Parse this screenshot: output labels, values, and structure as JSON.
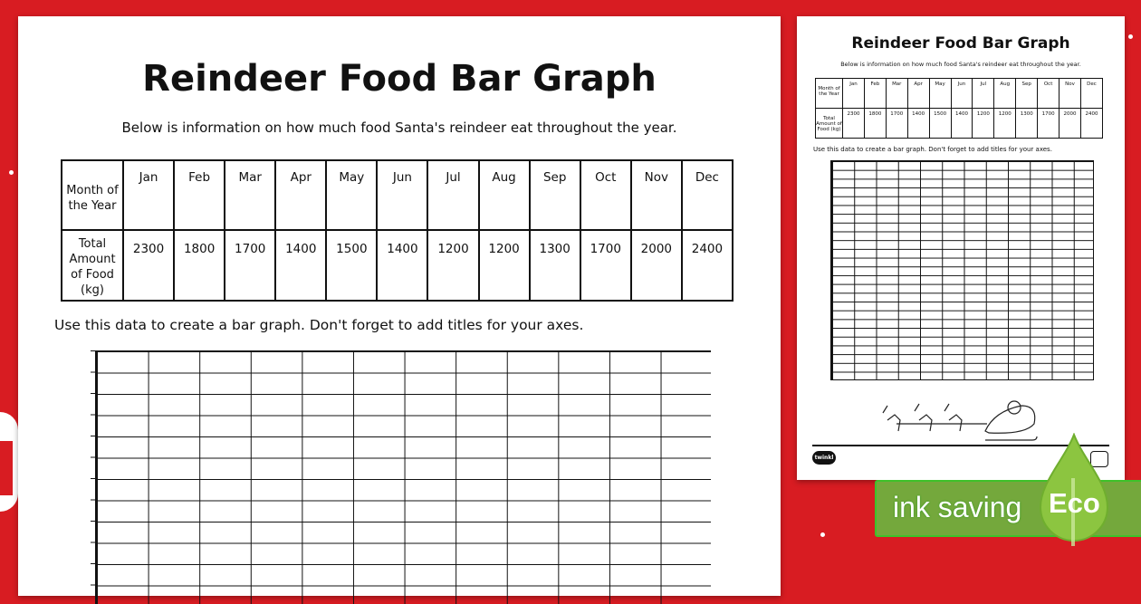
{
  "worksheet": {
    "title": "Reindeer Food Bar Graph",
    "subtitle": "Below is information on how much food Santa's reindeer eat throughout the year.",
    "row_header_month": "Month of the Year",
    "row_header_food": "Total Amount of Food (kg)",
    "months": [
      "Jan",
      "Feb",
      "Mar",
      "Apr",
      "May",
      "Jun",
      "Jul",
      "Aug",
      "Sep",
      "Oct",
      "Nov",
      "Dec"
    ],
    "food_kg": [
      "2300",
      "1800",
      "1700",
      "1400",
      "1500",
      "1400",
      "1200",
      "1200",
      "1300",
      "1700",
      "2000",
      "2400"
    ],
    "instruction": "Use this data to create a bar graph. Don't forget to add titles for your axes."
  },
  "preview": {
    "logo": "twinkl"
  },
  "badge": {
    "label": "ink saving",
    "eco": "Eco",
    "green": "#74a83c",
    "background_red": "#d81c22"
  }
}
